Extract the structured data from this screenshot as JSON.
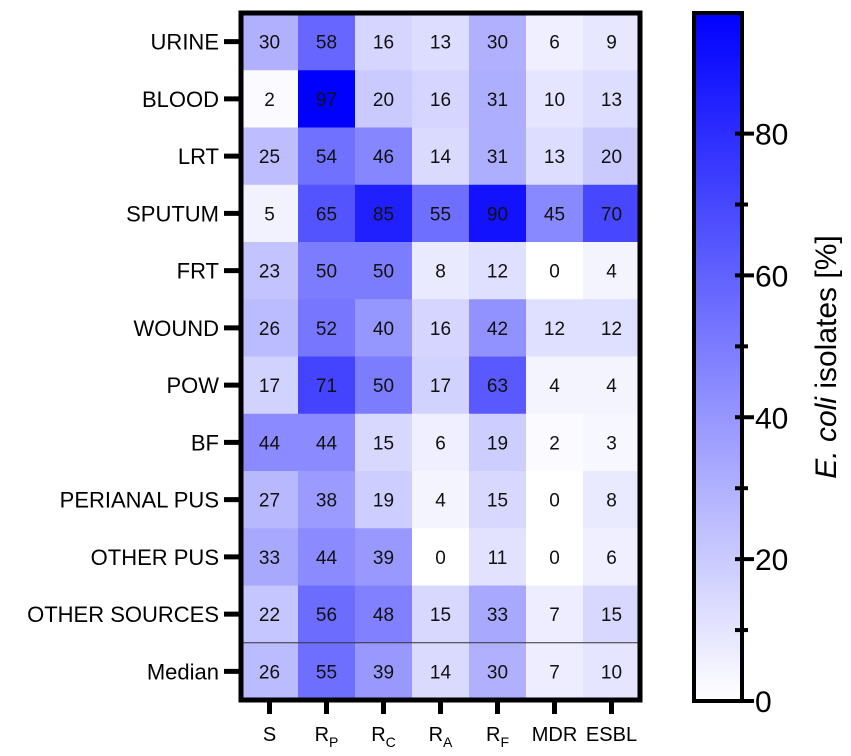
{
  "chart_data": {
    "type": "heatmap",
    "rows": [
      "URINE",
      "BLOOD",
      "LRT",
      "SPUTUM",
      "FRT",
      "WOUND",
      "POW",
      "BF",
      "PERIANAL PUS",
      "OTHER PUS",
      "OTHER SOURCES",
      "Median"
    ],
    "columns": [
      {
        "main": "S",
        "sub": ""
      },
      {
        "main": "R",
        "sub": "P"
      },
      {
        "main": "R",
        "sub": "C"
      },
      {
        "main": "R",
        "sub": "A"
      },
      {
        "main": "R",
        "sub": "F"
      },
      {
        "main": "MDR",
        "sub": ""
      },
      {
        "main": "ESBL",
        "sub": ""
      }
    ],
    "values": [
      [
        30,
        58,
        16,
        13,
        30,
        6,
        9
      ],
      [
        2,
        97,
        20,
        16,
        31,
        10,
        13
      ],
      [
        25,
        54,
        46,
        14,
        31,
        13,
        20
      ],
      [
        5,
        65,
        85,
        55,
        90,
        45,
        70
      ],
      [
        23,
        50,
        50,
        8,
        12,
        0,
        4
      ],
      [
        26,
        52,
        40,
        16,
        42,
        12,
        12
      ],
      [
        17,
        71,
        50,
        17,
        63,
        4,
        4
      ],
      [
        44,
        44,
        15,
        6,
        19,
        2,
        3
      ],
      [
        27,
        38,
        19,
        4,
        15,
        0,
        8
      ],
      [
        33,
        44,
        39,
        0,
        11,
        0,
        6
      ],
      [
        22,
        56,
        48,
        15,
        33,
        7,
        15
      ],
      [
        26,
        55,
        39,
        14,
        30,
        7,
        10
      ]
    ],
    "colorbar": {
      "min": 0,
      "max": 97,
      "ticks": [
        0,
        20,
        40,
        60,
        80
      ],
      "title_italic": "E. coli",
      "title_rest": " isolates [%]",
      "color_low": "#ffffff",
      "color_high": "#0000ff"
    },
    "separator_before_row": 11
  }
}
